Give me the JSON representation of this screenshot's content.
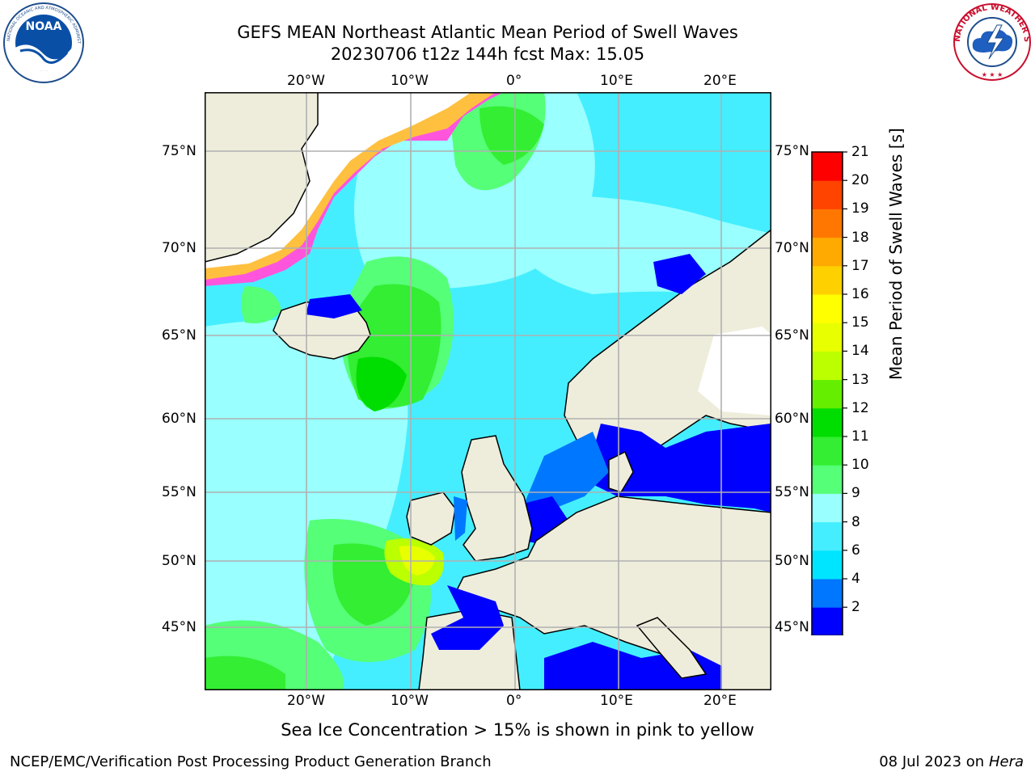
{
  "header": {
    "title_line1": "GEFS MEAN Northeast Atlantic Mean Period of Swell Waves",
    "title_line2": "20230706 t12z 144h fcst   Max: 15.05"
  },
  "logos": {
    "left": "NOAA",
    "left_ring_text": "NATIONAL OCEANIC AND ATMOSPHERIC ADMINISTRATION · U.S. DEPARTMENT OF COMMERCE",
    "right_ring_text": "NATIONAL WEATHER SERVICE"
  },
  "map": {
    "lon_ticks_top": [
      "20°W",
      "10°W",
      "0°",
      "10°E",
      "20°E"
    ],
    "lon_ticks_bottom": [
      "20°W",
      "10°W",
      "0°",
      "10°E",
      "20°E"
    ],
    "lat_ticks_left": [
      "75°N",
      "70°N",
      "65°N",
      "60°N",
      "55°N",
      "50°N",
      "45°N"
    ],
    "lat_ticks_right": [
      "75°N",
      "70°N",
      "65°N",
      "60°N",
      "55°N",
      "50°N",
      "45°N"
    ],
    "colors": {
      "land": "#eeeddc",
      "ice_edge": "#ff55dd",
      "ice_inner": "#ffc040"
    }
  },
  "colorbar": {
    "label": "Mean Period of Swell Waves [s]",
    "ticks": [
      "21",
      "20",
      "19",
      "18",
      "17",
      "16",
      "15",
      "14",
      "13",
      "12",
      "11",
      "10",
      "9",
      "8",
      "6",
      "4",
      "2"
    ],
    "colors_bottom_to_top": [
      "#0000ff",
      "#0077ff",
      "#00e5ff",
      "#44eeff",
      "#99ffff",
      "#55ff77",
      "#33ee33",
      "#00dd00",
      "#66ee00",
      "#bbff00",
      "#e8ff00",
      "#ffff00",
      "#ffd000",
      "#ffaa00",
      "#ff7700",
      "#ff4400",
      "#ff0000"
    ],
    "extend": "min"
  },
  "caption": "Sea Ice Concentration > 15% is shown in pink to yellow",
  "footer": {
    "left": "NCEP/EMC/Verification Post Processing Product Generation Branch",
    "right_prefix": "08 Jul 2023 on ",
    "right_machine": "Hera"
  }
}
